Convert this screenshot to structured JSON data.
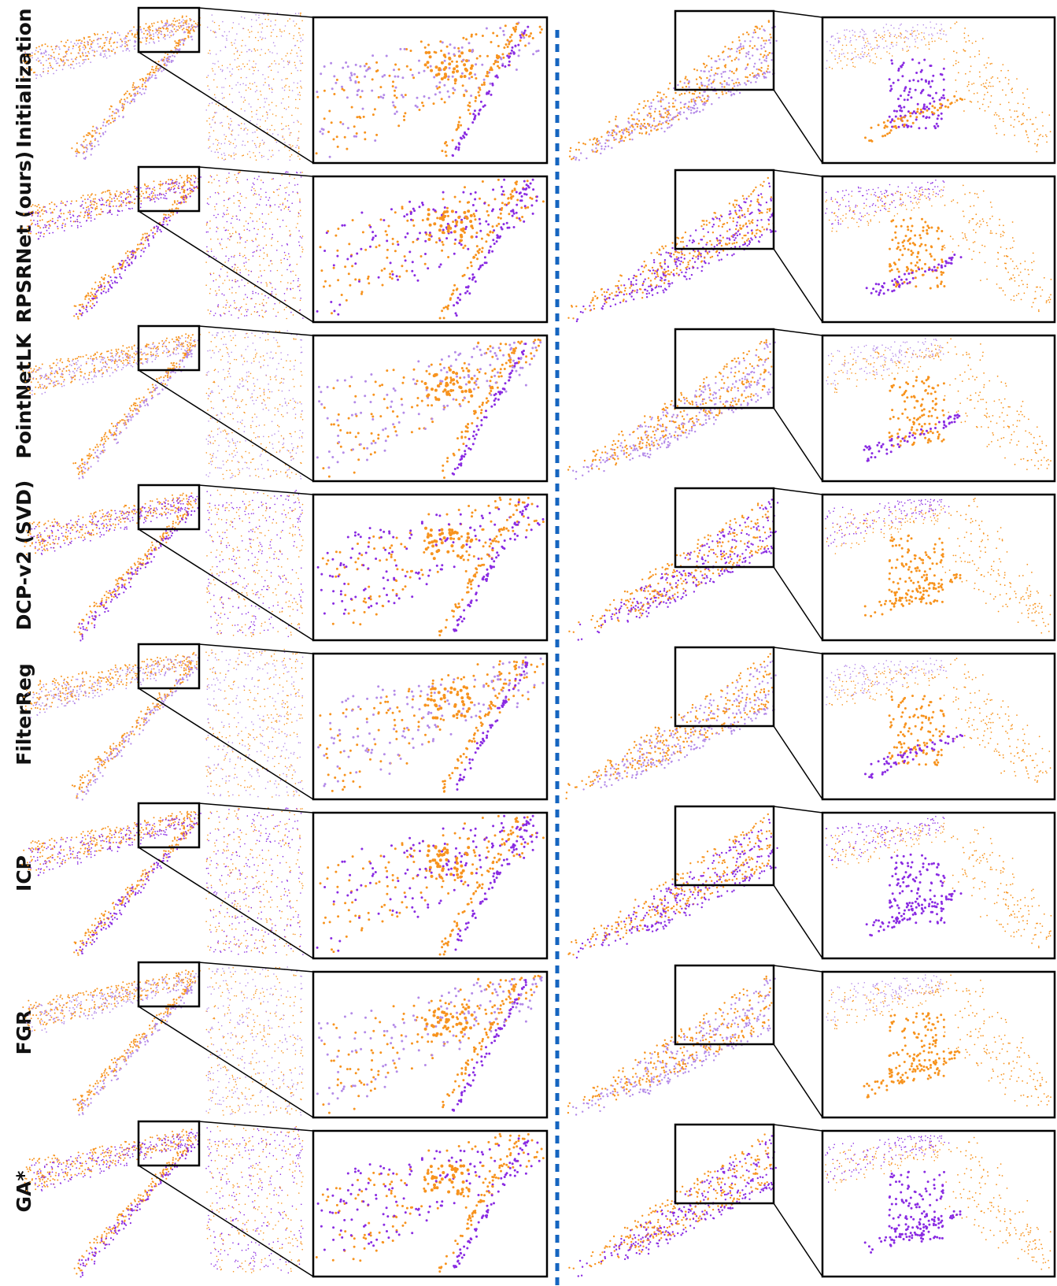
{
  "rows": [
    {
      "label": "Initialization"
    },
    {
      "label": "RPSRNet (ours)"
    },
    {
      "label": "PointNetLK"
    },
    {
      "label": "DCP-v2 (SVD)"
    },
    {
      "label": "FilterReg"
    },
    {
      "label": "ICP"
    },
    {
      "label": "FGR"
    },
    {
      "label": "GA*"
    }
  ]
}
